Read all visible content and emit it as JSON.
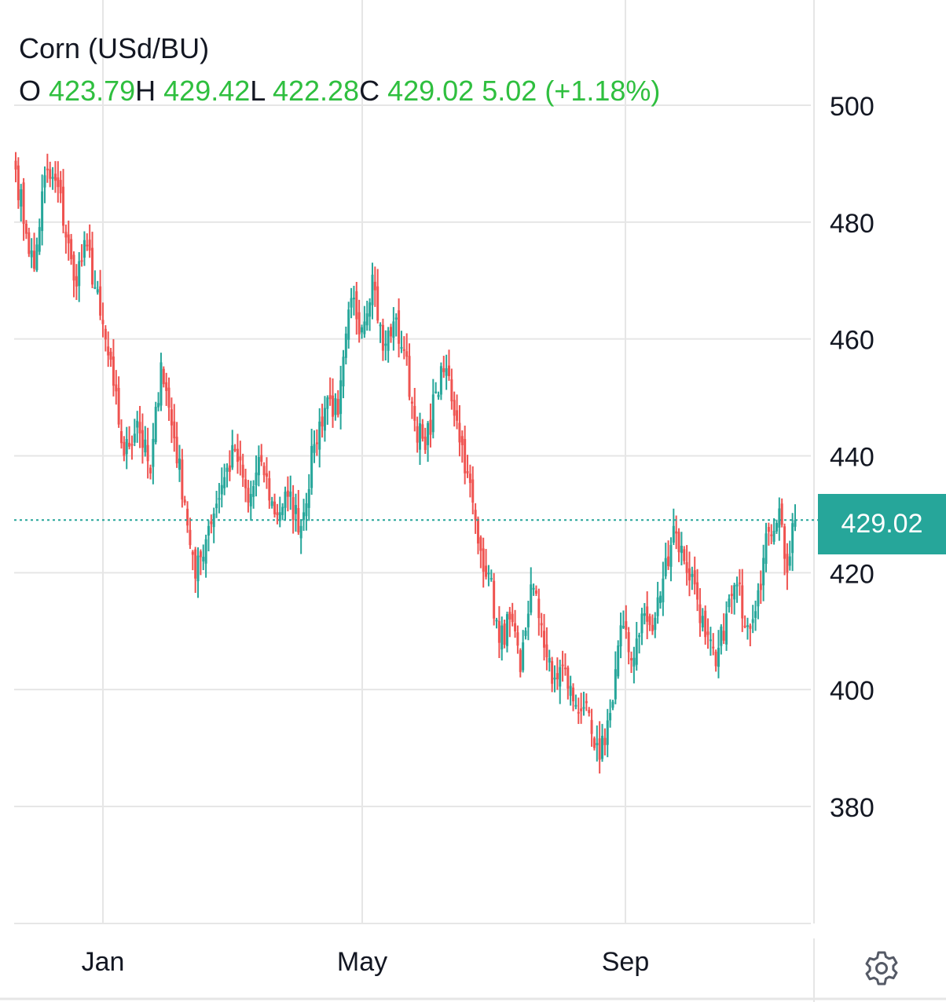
{
  "legend": {
    "title": "Corn (USd/BU)",
    "open_label": "O",
    "open": "423.79",
    "high_label": "H",
    "high": "429.42",
    "low_label": "L",
    "low": "422.28",
    "close_label": "C",
    "close": "429.02",
    "change": "5.02",
    "change_pct": "(+1.18%)"
  },
  "last_price": "429.02",
  "colors": {
    "up": "#26a69a",
    "down": "#ef5350",
    "legend_value": "#2fbf3f",
    "grid": "#e6e6e6"
  },
  "icons": {
    "settings": "gear-icon"
  },
  "chart_data": {
    "type": "candlestick",
    "title": "Corn (USd/BU)",
    "y_ticks": [
      500,
      480,
      460,
      440,
      420,
      400,
      380
    ],
    "x_ticks": [
      "Jan",
      "May",
      "Sep"
    ],
    "ylim": [
      360,
      520
    ],
    "grid": true,
    "last_value": 429.02,
    "anchors": [
      {
        "i": 0,
        "v": 489
      },
      {
        "i": 4,
        "v": 478
      },
      {
        "i": 7,
        "v": 472
      },
      {
        "i": 11,
        "v": 488
      },
      {
        "i": 16,
        "v": 486
      },
      {
        "i": 22,
        "v": 470
      },
      {
        "i": 27,
        "v": 476
      },
      {
        "i": 32,
        "v": 464
      },
      {
        "i": 37,
        "v": 452
      },
      {
        "i": 41,
        "v": 440
      },
      {
        "i": 46,
        "v": 446
      },
      {
        "i": 51,
        "v": 437
      },
      {
        "i": 55,
        "v": 456
      },
      {
        "i": 60,
        "v": 443
      },
      {
        "i": 64,
        "v": 432
      },
      {
        "i": 68,
        "v": 419
      },
      {
        "i": 73,
        "v": 428
      },
      {
        "i": 78,
        "v": 435
      },
      {
        "i": 83,
        "v": 441
      },
      {
        "i": 88,
        "v": 432
      },
      {
        "i": 93,
        "v": 439
      },
      {
        "i": 98,
        "v": 430
      },
      {
        "i": 103,
        "v": 433
      },
      {
        "i": 108,
        "v": 428
      },
      {
        "i": 113,
        "v": 442
      },
      {
        "i": 118,
        "v": 450
      },
      {
        "i": 122,
        "v": 447
      },
      {
        "i": 127,
        "v": 467
      },
      {
        "i": 131,
        "v": 462
      },
      {
        "i": 135,
        "v": 471
      },
      {
        "i": 139,
        "v": 458
      },
      {
        "i": 143,
        "v": 463
      },
      {
        "i": 147,
        "v": 458
      },
      {
        "i": 151,
        "v": 446
      },
      {
        "i": 155,
        "v": 441
      },
      {
        "i": 159,
        "v": 451
      },
      {
        "i": 163,
        "v": 455
      },
      {
        "i": 167,
        "v": 446
      },
      {
        "i": 171,
        "v": 437
      },
      {
        "i": 175,
        "v": 425
      },
      {
        "i": 179,
        "v": 420
      },
      {
        "i": 183,
        "v": 408
      },
      {
        "i": 187,
        "v": 412
      },
      {
        "i": 191,
        "v": 403
      },
      {
        "i": 195,
        "v": 418
      },
      {
        "i": 199,
        "v": 411
      },
      {
        "i": 203,
        "v": 401
      },
      {
        "i": 207,
        "v": 404
      },
      {
        "i": 211,
        "v": 398
      },
      {
        "i": 215,
        "v": 397
      },
      {
        "i": 219,
        "v": 390
      },
      {
        "i": 221,
        "v": 388
      },
      {
        "i": 225,
        "v": 396
      },
      {
        "i": 229,
        "v": 411
      },
      {
        "i": 233,
        "v": 405
      },
      {
        "i": 237,
        "v": 413
      },
      {
        "i": 241,
        "v": 410
      },
      {
        "i": 245,
        "v": 419
      },
      {
        "i": 249,
        "v": 428
      },
      {
        "i": 253,
        "v": 422
      },
      {
        "i": 257,
        "v": 418
      },
      {
        "i": 261,
        "v": 409
      },
      {
        "i": 265,
        "v": 404
      },
      {
        "i": 269,
        "v": 413
      },
      {
        "i": 273,
        "v": 418
      },
      {
        "i": 277,
        "v": 411
      },
      {
        "i": 281,
        "v": 417
      },
      {
        "i": 285,
        "v": 427
      },
      {
        "i": 289,
        "v": 431
      },
      {
        "i": 292,
        "v": 420
      },
      {
        "i": 295,
        "v": 429.02
      }
    ]
  }
}
